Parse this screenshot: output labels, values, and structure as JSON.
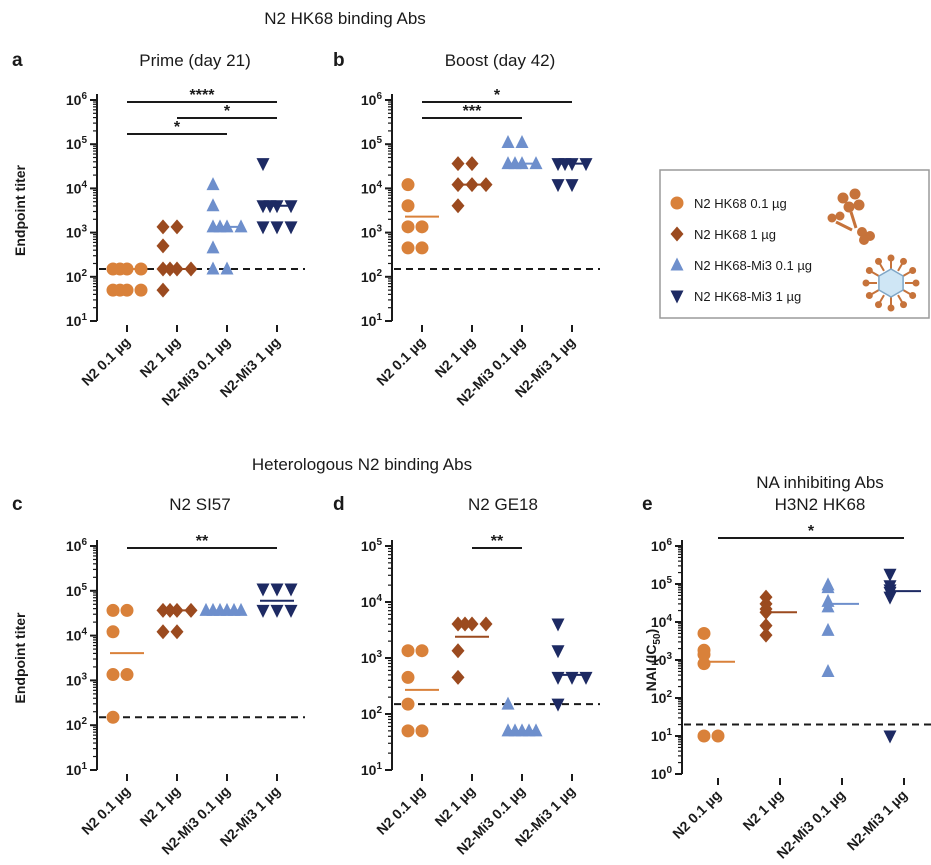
{
  "section_titles": {
    "top": "N2 HK68 binding Abs",
    "bottom": "Heterologous N2 binding Abs"
  },
  "groups": [
    "N2 0.1 µg",
    "N2 1 µg",
    "N2-Mi3 0.1 µg",
    "N2-Mi3 1 µg"
  ],
  "group_colors": [
    "#d9813a",
    "#9b4a1f",
    "#6e8fcc",
    "#1d2a63"
  ],
  "group_markers": [
    "circle",
    "diamond",
    "triangle-up",
    "triangle-down"
  ],
  "legend": {
    "items": [
      "N2 HK68 0.1 µg",
      "N2 HK68 1 µg",
      "N2 HK68-Mi3 0.1 µg",
      "N2 HK68-Mi3 1 µg"
    ],
    "icons": [
      "free-n2-tetramer-icon",
      "mi3-nanoparticle-icon"
    ]
  },
  "chart_data": [
    {
      "panel": "a",
      "type": "scatter",
      "scale": "log",
      "title": "Prime (day 21)",
      "ylabel": "Endpoint titer",
      "ylim_exp": [
        1,
        6
      ],
      "tick_labels": [
        "10^1",
        "10^2",
        "10^3",
        "10^4",
        "10^5",
        "10^6"
      ],
      "threshold": 150,
      "series": [
        {
          "values": [
            50,
            50,
            50,
            50,
            150,
            150,
            150,
            150
          ],
          "mean": 150
        },
        {
          "values": [
            50,
            150,
            150,
            150,
            150,
            500,
            1350,
            1350
          ],
          "mean": 150
        },
        {
          "values": [
            150,
            150,
            450,
            1350,
            1350,
            1350,
            1350,
            4050,
            12150
          ],
          "mean": 1350
        },
        {
          "values": [
            1350,
            1350,
            1350,
            4050,
            4050,
            4050,
            4050,
            36450
          ],
          "mean": 4050
        }
      ],
      "significance": [
        {
          "from": 0,
          "to": 3,
          "label": "****"
        },
        {
          "from": 1,
          "to": 3,
          "label": "*"
        },
        {
          "from": 0,
          "to": 2,
          "label": "*"
        }
      ]
    },
    {
      "panel": "b",
      "type": "scatter",
      "scale": "log",
      "title": "Boost (day 42)",
      "ylabel": "",
      "ylim_exp": [
        1,
        6
      ],
      "tick_labels": [
        "10^1",
        "10^2",
        "10^3",
        "10^4",
        "10^5",
        "10^6"
      ],
      "threshold": 150,
      "series": [
        {
          "values": [
            450,
            450,
            1350,
            1350,
            4050,
            12150
          ],
          "mean": 2300
        },
        {
          "values": [
            4050,
            12150,
            12150,
            12150,
            36450,
            36450
          ],
          "mean": 12150
        },
        {
          "values": [
            36450,
            36450,
            36450,
            36450,
            109350,
            109350
          ],
          "mean": 36450
        },
        {
          "values": [
            12150,
            12150,
            36450,
            36450,
            36450,
            36450
          ],
          "mean": 36450
        }
      ],
      "significance": [
        {
          "from": 0,
          "to": 3,
          "label": "*"
        },
        {
          "from": 0,
          "to": 2,
          "label": "***"
        }
      ]
    },
    {
      "panel": "c",
      "type": "scatter",
      "scale": "log",
      "title": "N2 SI57",
      "ylabel": "Endpoint titer",
      "ylim_exp": [
        1,
        6
      ],
      "tick_labels": [
        "10^1",
        "10^2",
        "10^3",
        "10^4",
        "10^5",
        "10^6"
      ],
      "threshold": 150,
      "series": [
        {
          "values": [
            150,
            1350,
            1350,
            12150,
            36450,
            36450
          ],
          "mean": 4050
        },
        {
          "values": [
            12150,
            12150,
            36450,
            36450,
            36450,
            36450
          ],
          "mean": 36450
        },
        {
          "values": [
            36450,
            36450,
            36450,
            36450,
            36450,
            36450
          ],
          "mean": 36450
        },
        {
          "values": [
            36450,
            36450,
            36450,
            109350,
            109350,
            109350
          ],
          "mean": 60000
        }
      ],
      "significance": [
        {
          "from": 0,
          "to": 3,
          "label": "**"
        }
      ]
    },
    {
      "panel": "d",
      "type": "scatter",
      "scale": "log",
      "title": "N2 GE18",
      "ylabel": "",
      "ylim_exp": [
        1,
        5
      ],
      "tick_labels": [
        "10^1",
        "10^2",
        "10^3",
        "10^4",
        "10^5"
      ],
      "threshold": 150,
      "series": [
        {
          "values": [
            50,
            50,
            150,
            450,
            1350,
            1350
          ],
          "mean": 270
        },
        {
          "values": [
            450,
            1350,
            4050,
            4050,
            4050,
            4050
          ],
          "mean": 2400
        },
        {
          "values": [
            50,
            50,
            50,
            50,
            50,
            150
          ],
          "mean": 50
        },
        {
          "values": [
            150,
            450,
            450,
            450,
            1350,
            4050
          ],
          "mean": 500
        }
      ],
      "significance": [
        {
          "from": 1,
          "to": 2,
          "label": "**"
        }
      ]
    },
    {
      "panel": "e",
      "type": "scatter",
      "scale": "log",
      "title": "NA inhibiting Abs",
      "subtitle": "H3N2 HK68",
      "ylabel": "NAI (IC50)",
      "ylim_exp": [
        0,
        6
      ],
      "tick_labels": [
        "10^0",
        "10^1",
        "10^2",
        "10^3",
        "10^4",
        "10^5",
        "10^6"
      ],
      "threshold": 20,
      "series": [
        {
          "values": [
            10,
            10,
            800,
            1400,
            1800,
            5000
          ],
          "mean": 900
        },
        {
          "values": [
            4500,
            8000,
            18000,
            22000,
            30000,
            45000
          ],
          "mean": 18000
        },
        {
          "values": [
            500,
            6000,
            25000,
            35000,
            80000,
            95000
          ],
          "mean": 30000
        },
        {
          "values": [
            10,
            45000,
            60000,
            70000,
            90000,
            180000
          ],
          "mean": 65000
        }
      ],
      "significance": [
        {
          "from": 0,
          "to": 3,
          "label": "*"
        }
      ]
    }
  ]
}
